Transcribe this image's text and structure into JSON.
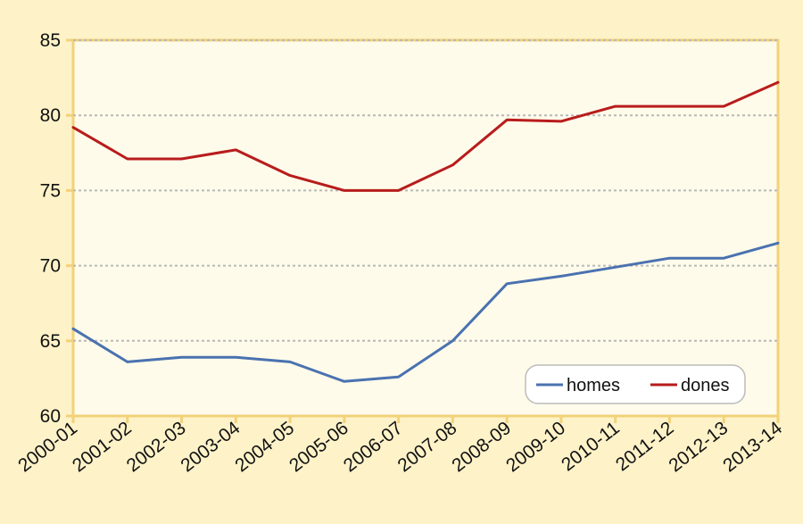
{
  "chart_data": {
    "type": "line",
    "title": "",
    "xlabel": "",
    "ylabel": "",
    "categories": [
      "2000-01",
      "2001-02",
      "2002-03",
      "2003-04",
      "2004-05",
      "2005-06",
      "2006-07",
      "2007-08",
      "2008-09",
      "2009-10",
      "2010-11",
      "2011-12",
      "2012-13",
      "2013-14"
    ],
    "ylim": [
      60,
      85
    ],
    "yticks": [
      60,
      65,
      70,
      75,
      80,
      85
    ],
    "grid": true,
    "legend_position": "bottom-right",
    "series": [
      {
        "name": "homes",
        "color": "#4a72b0",
        "values": [
          65.8,
          63.6,
          63.9,
          63.9,
          63.6,
          62.3,
          62.6,
          65.0,
          68.8,
          69.3,
          69.9,
          70.5,
          70.5,
          71.5
        ]
      },
      {
        "name": "dones",
        "color": "#b81c1c",
        "values": [
          79.2,
          77.1,
          77.1,
          77.7,
          76.0,
          75.0,
          75.0,
          76.7,
          79.7,
          79.6,
          80.6,
          80.6,
          80.6,
          82.2
        ]
      }
    ]
  },
  "colors": {
    "page_background": "#fdf2c8",
    "plot_background": "#fffbea",
    "axis_frame": "#f2d27a",
    "gridline": "#b8b8b8"
  }
}
